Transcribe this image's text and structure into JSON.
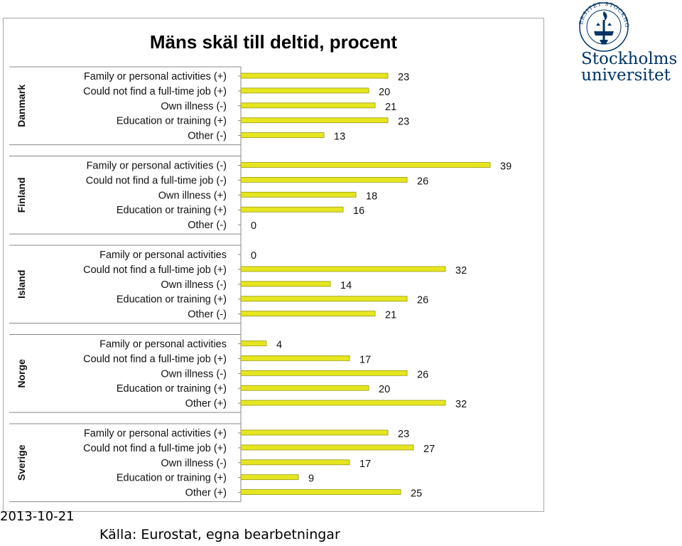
{
  "chart_data": {
    "type": "bar",
    "orientation": "horizontal",
    "title": "Mäns skäl till deltid, procent",
    "groups": [
      {
        "name": "Danmark",
        "categories": [
          "Family or personal activities (+)",
          "Could not find a full-time job (+)",
          "Own illness (-)",
          "Education or training (+)",
          "Other (-)"
        ],
        "values": [
          23,
          20,
          21,
          23,
          13
        ]
      },
      {
        "name": "Finland",
        "categories": [
          "Family or personal activities (-)",
          "Could not find a full-time job (-)",
          "Own illness (+)",
          "Education or training (+)",
          "Other (-)"
        ],
        "values": [
          39,
          26,
          18,
          16,
          0
        ]
      },
      {
        "name": "Island",
        "categories": [
          "Family or personal activities",
          "Could not find a full-time job (+)",
          "Own illness (-)",
          "Education or training (+)",
          "Other (-)"
        ],
        "values": [
          0,
          32,
          14,
          26,
          21
        ]
      },
      {
        "name": "Norge",
        "categories": [
          "Family or personal activities",
          "Could not find a full-time job (+)",
          "Own illness (-)",
          "Education or training (+)",
          "Other (+)"
        ],
        "values": [
          4,
          17,
          26,
          20,
          32
        ]
      },
      {
        "name": "Sverige",
        "categories": [
          "Family or personal activities (+)",
          "Could not find a full-time job (+)",
          "Own illness (-)",
          "Education or training (+)",
          "Other (+)"
        ],
        "values": [
          23,
          27,
          17,
          9,
          25
        ]
      }
    ],
    "bar_color": "#e6e620",
    "bar_edge_color": "#9a9a10",
    "xlim": [
      0,
      40
    ],
    "grid": false,
    "data_labels": true
  },
  "logo": {
    "line1": "Stockholms",
    "line2": "universitet",
    "seal_text": "UNIVERSITET STOCKHOLMS",
    "color": "#003366"
  },
  "footer": {
    "date": "2013-10-21",
    "source": "Källa: Eurostat, egna bearbetningar"
  }
}
